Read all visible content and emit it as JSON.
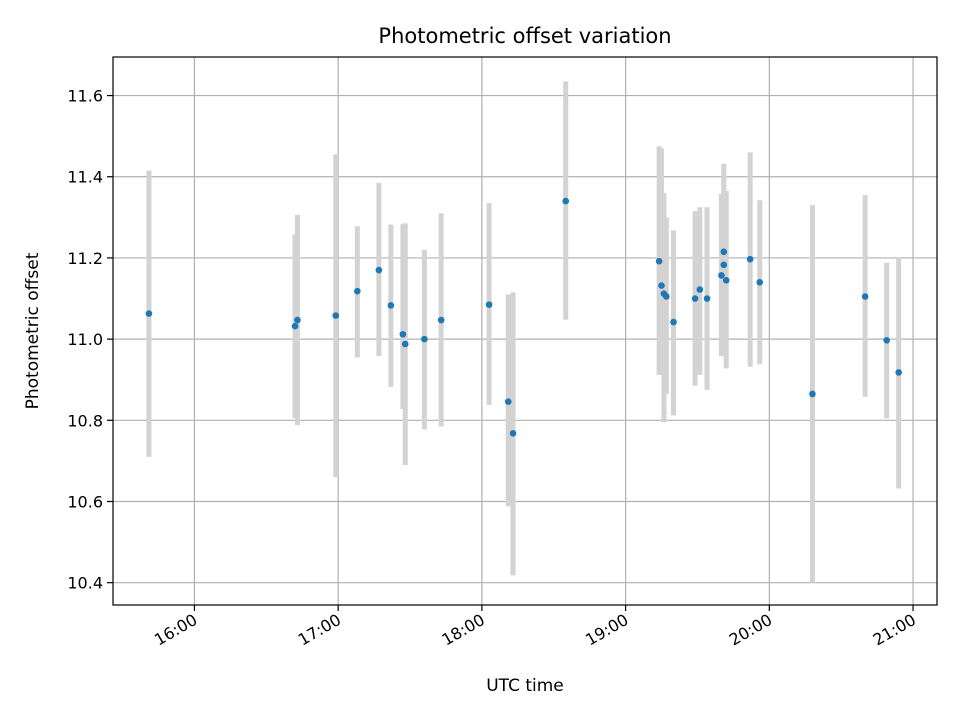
{
  "chart_data": {
    "type": "scatter",
    "title": "Photometric offset variation",
    "xlabel": "UTC time",
    "ylabel": "Photometric offset",
    "grid": true,
    "xlim": [
      "15:26",
      "21:10"
    ],
    "ylim": [
      10.345,
      11.695
    ],
    "x_ticks": [
      "16:00",
      "17:00",
      "18:00",
      "19:00",
      "20:00",
      "21:00"
    ],
    "y_ticks": [
      "10.4",
      "10.6",
      "10.8",
      "11.0",
      "11.2",
      "11.4",
      "11.6"
    ],
    "colors": {
      "point": "#1f77b4",
      "errorbar": "#d3d3d3",
      "grid": "#b0b0b0"
    },
    "points": [
      {
        "t": "15:41",
        "y": 11.063,
        "lo": 10.71,
        "hi": 11.415
      },
      {
        "t": "16:42",
        "y": 11.032,
        "lo": 10.805,
        "hi": 11.258
      },
      {
        "t": "16:43",
        "y": 11.047,
        "lo": 10.788,
        "hi": 11.306
      },
      {
        "t": "16:59",
        "y": 11.058,
        "lo": 10.66,
        "hi": 11.455
      },
      {
        "t": "17:08",
        "y": 11.118,
        "lo": 10.955,
        "hi": 11.278
      },
      {
        "t": "17:17",
        "y": 11.17,
        "lo": 10.958,
        "hi": 11.385
      },
      {
        "t": "17:22",
        "y": 11.083,
        "lo": 10.882,
        "hi": 11.282
      },
      {
        "t": "17:27",
        "y": 11.012,
        "lo": 10.828,
        "hi": 11.283
      },
      {
        "t": "17:28",
        "y": 10.988,
        "lo": 10.69,
        "hi": 11.285
      },
      {
        "t": "17:36",
        "y": 11.0,
        "lo": 10.778,
        "hi": 11.22
      },
      {
        "t": "17:43",
        "y": 11.047,
        "lo": 10.785,
        "hi": 11.31
      },
      {
        "t": "18:03",
        "y": 11.085,
        "lo": 10.838,
        "hi": 11.335
      },
      {
        "t": "18:11",
        "y": 10.846,
        "lo": 10.588,
        "hi": 11.11
      },
      {
        "t": "18:13",
        "y": 10.768,
        "lo": 10.418,
        "hi": 11.115
      },
      {
        "t": "18:35",
        "y": 11.34,
        "lo": 11.048,
        "hi": 11.635
      },
      {
        "t": "19:14",
        "y": 11.192,
        "lo": 10.912,
        "hi": 11.475
      },
      {
        "t": "19:15",
        "y": 11.132,
        "lo": 10.918,
        "hi": 11.47
      },
      {
        "t": "19:16",
        "y": 11.112,
        "lo": 10.795,
        "hi": 11.36
      },
      {
        "t": "19:17",
        "y": 11.105,
        "lo": 10.865,
        "hi": 11.3
      },
      {
        "t": "19:20",
        "y": 11.042,
        "lo": 10.812,
        "hi": 11.268
      },
      {
        "t": "19:29",
        "y": 11.1,
        "lo": 10.885,
        "hi": 11.315
      },
      {
        "t": "19:31",
        "y": 11.122,
        "lo": 10.912,
        "hi": 11.325
      },
      {
        "t": "19:34",
        "y": 11.1,
        "lo": 10.875,
        "hi": 11.325
      },
      {
        "t": "19:40",
        "y": 11.157,
        "lo": 10.958,
        "hi": 11.358
      },
      {
        "t": "19:41",
        "y": 11.183,
        "lo": 10.962,
        "hi": 11.412
      },
      {
        "t": "19:41",
        "y": 11.215,
        "lo": 10.992,
        "hi": 11.432
      },
      {
        "t": "19:42",
        "y": 11.145,
        "lo": 10.928,
        "hi": 11.365
      },
      {
        "t": "19:52",
        "y": 11.197,
        "lo": 10.932,
        "hi": 11.46
      },
      {
        "t": "19:56",
        "y": 11.14,
        "lo": 10.938,
        "hi": 11.342
      },
      {
        "t": "20:18",
        "y": 10.865,
        "lo": 10.4,
        "hi": 11.33
      },
      {
        "t": "20:40",
        "y": 11.105,
        "lo": 10.858,
        "hi": 11.355
      },
      {
        "t": "20:49",
        "y": 10.997,
        "lo": 10.805,
        "hi": 11.188
      },
      {
        "t": "20:54",
        "y": 10.918,
        "lo": 10.632,
        "hi": 11.202
      }
    ]
  }
}
